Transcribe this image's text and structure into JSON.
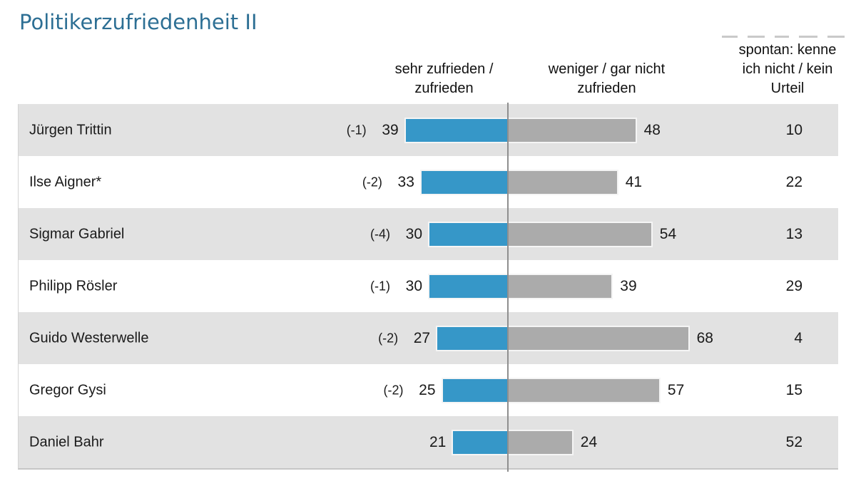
{
  "title": "Politikerzufriedenheit II",
  "headers": {
    "satisfied": "sehr zufrieden /\nzufrieden",
    "unsatisfied": "weniger / gar nicht\nzufrieden",
    "no_opinion": "spontan: kenne\nich nicht / kein\nUrteil"
  },
  "colors": {
    "title_text": "#2d6f94",
    "bar_satisfied": "#3697c8",
    "bar_unsatisfied": "#ababab",
    "row_alt_background": "#e2e2e2",
    "axis_line": "#8f8f8f"
  },
  "chart_data": {
    "type": "bar",
    "orientation": "horizontal",
    "diverging_center_axis": true,
    "title": "Politikerzufriedenheit II",
    "categories": [
      "Jürgen Trittin",
      "Ilse Aigner*",
      "Sigmar Gabriel",
      "Philipp Rösler",
      "Guido Westerwelle",
      "Gregor Gysi",
      "Daniel Bahr"
    ],
    "series": [
      {
        "name": "sehr zufrieden / zufrieden",
        "color": "#3697c8",
        "direction": "left-of-axis",
        "values": [
          39,
          33,
          30,
          30,
          27,
          25,
          21
        ]
      },
      {
        "name": "weniger / gar nicht zufrieden",
        "color": "#ababab",
        "direction": "right-of-axis",
        "values": [
          48,
          41,
          54,
          39,
          68,
          57,
          24
        ]
      },
      {
        "name": "spontan: kenne ich nicht / kein Urteil",
        "display": "number-only",
        "values": [
          10,
          22,
          13,
          29,
          4,
          15,
          52
        ]
      }
    ],
    "change_labels": [
      "(-1)",
      "(-2)",
      "(-4)",
      "(-1)",
      "(-2)",
      "(-2)",
      ""
    ],
    "value_unit": "percent",
    "grid": false,
    "legend_position": "top-as-column-headers",
    "row_striping": [
      "gray",
      "white",
      "gray",
      "white",
      "gray",
      "white",
      "gray"
    ]
  }
}
